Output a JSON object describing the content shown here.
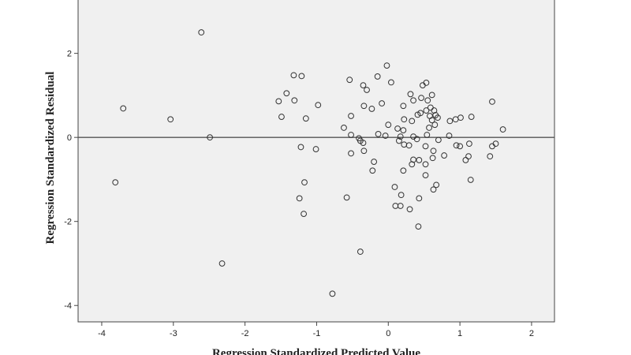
{
  "chart_data": {
    "type": "scatter",
    "x_label": "Regression Standardized Predicted Value",
    "y_label": "Regression Standardized Residual",
    "xlim": [
      -4.33,
      2.32
    ],
    "ylim": [
      -4.39,
      3.27
    ],
    "xticks": [
      -4,
      -3,
      -2,
      -1,
      0,
      1,
      2
    ],
    "yticks": [
      -4,
      -2,
      0,
      2
    ],
    "reference_line_y": 0,
    "background": "#f0f0f0",
    "marker_color": "#333333",
    "x": [
      -2.61,
      -3.7,
      -3.04,
      -2.49,
      -3.81,
      -2.32,
      -1.32,
      -1.21,
      -1.42,
      -1.53,
      -1.31,
      -0.98,
      -1.49,
      -1.15,
      -1.22,
      -1.01,
      -1.17,
      -1.24,
      -1.18,
      -0.78,
      -0.54,
      -0.35,
      -0.3,
      -0.15,
      -0.02,
      0.04,
      -0.52,
      -0.34,
      -0.23,
      -0.09,
      -0.62,
      -0.52,
      -0.41,
      -0.39,
      -0.35,
      -0.34,
      -0.52,
      -0.2,
      -0.22,
      -0.58,
      -0.39,
      -0.14,
      -0.04,
      0.0,
      0.13,
      0.17,
      0.15,
      0.22,
      0.21,
      0.22,
      0.21,
      0.31,
      0.35,
      0.46,
      0.48,
      0.53,
      0.41,
      0.33,
      0.45,
      0.29,
      0.35,
      0.4,
      0.33,
      0.35,
      0.43,
      0.52,
      0.21,
      0.52,
      0.09,
      0.18,
      0.1,
      0.17,
      0.3,
      0.43,
      0.42,
      0.52,
      0.54,
      0.57,
      0.61,
      0.53,
      0.55,
      0.61,
      0.59,
      0.64,
      0.66,
      0.58,
      0.65,
      0.69,
      0.7,
      0.63,
      0.62,
      0.67,
      0.63,
      0.85,
      0.86,
      0.94,
      0.95,
      1.0,
      0.78,
      1.08,
      1.12,
      1.16,
      1.15,
      1.01,
      1.13,
      1.45,
      1.42,
      1.45,
      1.5,
      1.6
    ],
    "values": [
      2.5,
      0.69,
      0.43,
      0.0,
      -1.07,
      -3.0,
      1.48,
      1.46,
      1.05,
      0.86,
      0.88,
      0.77,
      0.49,
      0.45,
      -0.23,
      -0.28,
      -1.07,
      -1.45,
      -1.82,
      -3.72,
      1.37,
      1.24,
      1.13,
      1.45,
      1.71,
      1.31,
      0.51,
      0.75,
      0.68,
      0.81,
      0.23,
      0.06,
      -0.02,
      -0.08,
      -0.13,
      -0.32,
      -0.38,
      -0.58,
      -0.79,
      -1.43,
      -2.72,
      0.08,
      0.04,
      0.3,
      0.21,
      0.02,
      -0.08,
      -0.17,
      0.17,
      0.43,
      0.75,
      1.03,
      0.88,
      0.94,
      1.24,
      1.3,
      0.54,
      0.39,
      0.58,
      -0.19,
      0.02,
      -0.04,
      -0.64,
      -0.53,
      -0.54,
      -0.64,
      -0.79,
      -0.9,
      -1.18,
      -1.37,
      -1.63,
      -1.63,
      -1.71,
      -1.45,
      -2.12,
      -0.21,
      0.06,
      0.23,
      0.41,
      0.64,
      0.88,
      1.01,
      0.71,
      0.64,
      0.53,
      0.51,
      0.3,
      0.47,
      -0.06,
      -0.32,
      -0.49,
      -1.13,
      -1.24,
      0.04,
      0.39,
      0.43,
      -0.19,
      -0.21,
      -0.43,
      -0.54,
      -0.45,
      0.49,
      -1.01,
      0.47,
      -0.15,
      0.85,
      -0.45,
      -0.21,
      -0.15,
      0.19
    ]
  }
}
